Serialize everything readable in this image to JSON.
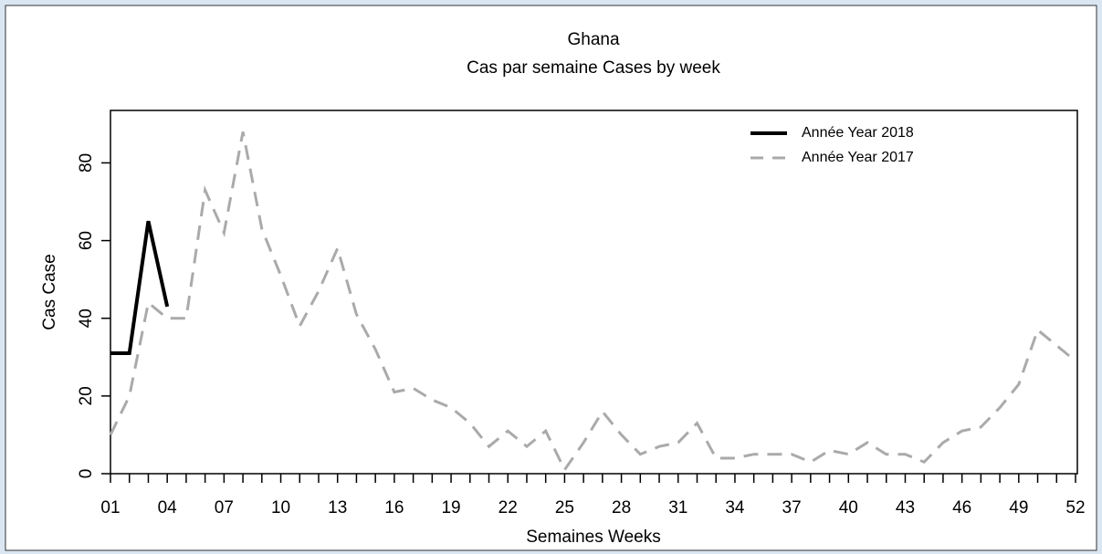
{
  "chart_data": {
    "type": "line",
    "title": "Ghana",
    "subtitle": "Cas par semaine Cases by week",
    "x_label": "Semaines Weeks",
    "y_label": "Cas Case",
    "categories": [
      "01",
      null,
      null,
      "04",
      null,
      null,
      "07",
      null,
      null,
      "10",
      null,
      null,
      "13",
      null,
      null,
      "16",
      null,
      null,
      "19",
      null,
      null,
      "22",
      null,
      null,
      "25",
      null,
      null,
      "28",
      null,
      null,
      "31",
      null,
      null,
      "34",
      null,
      null,
      "37",
      null,
      null,
      "40",
      null,
      null,
      "43",
      null,
      null,
      "46",
      null,
      null,
      "49",
      null,
      null,
      "52"
    ],
    "series": [
      {
        "name": "Année Year 2018",
        "color": "#000000",
        "style": "solid",
        "values": [
          31,
          31,
          65,
          43,
          null,
          null,
          null,
          null,
          null,
          null,
          null,
          null,
          null,
          null,
          null,
          null,
          null,
          null,
          null,
          null,
          null,
          null,
          null,
          null,
          null,
          null,
          null,
          null,
          null,
          null,
          null,
          null,
          null,
          null,
          null,
          null,
          null,
          null,
          null,
          null,
          null,
          null,
          null,
          null,
          null,
          null,
          null,
          null,
          null,
          null,
          null,
          null
        ]
      },
      {
        "name": "Année Year 2017",
        "color": "#aaaaaa",
        "style": "dashed",
        "values": [
          10,
          20,
          44,
          40,
          40,
          73,
          62,
          88,
          63,
          51,
          38,
          47,
          58,
          41,
          32,
          21,
          22,
          19,
          17,
          13,
          7,
          11,
          7,
          11,
          1,
          8,
          16,
          10,
          5,
          7,
          8,
          13,
          4,
          4,
          5,
          5,
          5,
          3,
          6,
          5,
          8,
          5,
          5,
          3,
          8,
          11,
          12,
          17,
          23,
          37,
          33,
          29
        ]
      }
    ],
    "ylim": [
      0,
      93.5
    ],
    "yticks": [
      0,
      20,
      40,
      60,
      80
    ],
    "legend": "top-right"
  }
}
